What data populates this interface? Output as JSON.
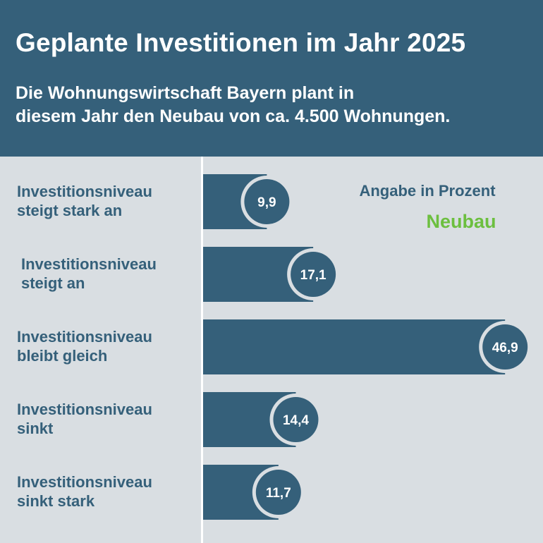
{
  "header": {
    "title": "Geplante Investitionen im Jahr 2025",
    "subtitle_line1": "Die Wohnungswirtschaft Bayern plant in",
    "subtitle_line2": "diesem Jahr den Neubau von ca. 4.500 Wohnungen."
  },
  "colors": {
    "header_bg": "#35607a",
    "bar": "#35607a",
    "page_bg": "#d9dee2",
    "series_label": "#6cbf3f"
  },
  "chart_data": {
    "type": "bar",
    "orientation": "horizontal",
    "unit_note": "Angabe in Prozent",
    "series": [
      {
        "name": "Neubau",
        "values": [
          9.9,
          17.1,
          46.9,
          14.4,
          11.7
        ],
        "value_labels": [
          "9,9",
          "17,1",
          "46,9",
          "14,4",
          "11,7"
        ]
      }
    ],
    "categories": [
      [
        "Investitionsniveau",
        "steigt stark an"
      ],
      [
        "Investitionsniveau",
        "steigt an"
      ],
      [
        "Investitionsniveau",
        "bleibt gleich"
      ],
      [
        "Investitionsniveau",
        "sinkt"
      ],
      [
        "Investitionsniveau",
        "sinkt stark"
      ]
    ],
    "xlim": [
      0,
      50
    ],
    "grid": false
  }
}
